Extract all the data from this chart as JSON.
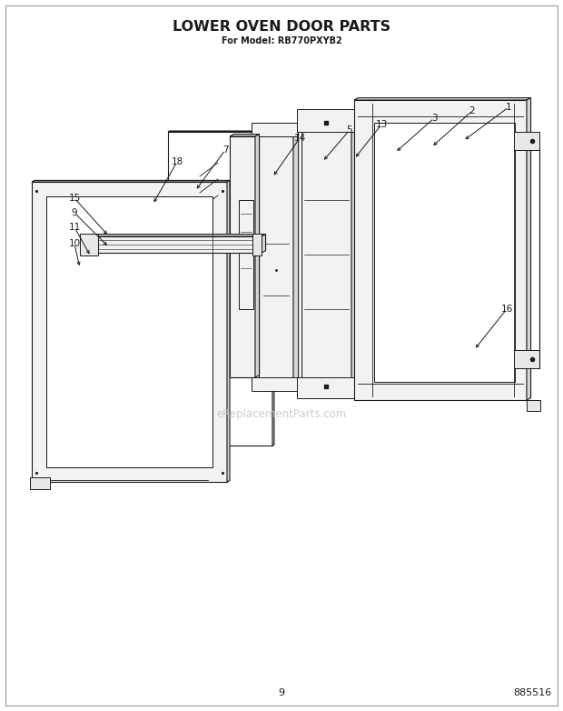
{
  "title": "LOWER OVEN DOOR PARTS",
  "subtitle": "For Model: RB770PXYB2",
  "page_number": "9",
  "part_number": "885516",
  "background_color": "#ffffff",
  "line_color": "#1a1a1a",
  "fill_light": "#f2f2f2",
  "fill_mid": "#e8e8e8",
  "fill_dark": "#d5d5d5",
  "watermark": "eReplacementParts.com",
  "border_color": "#999999"
}
